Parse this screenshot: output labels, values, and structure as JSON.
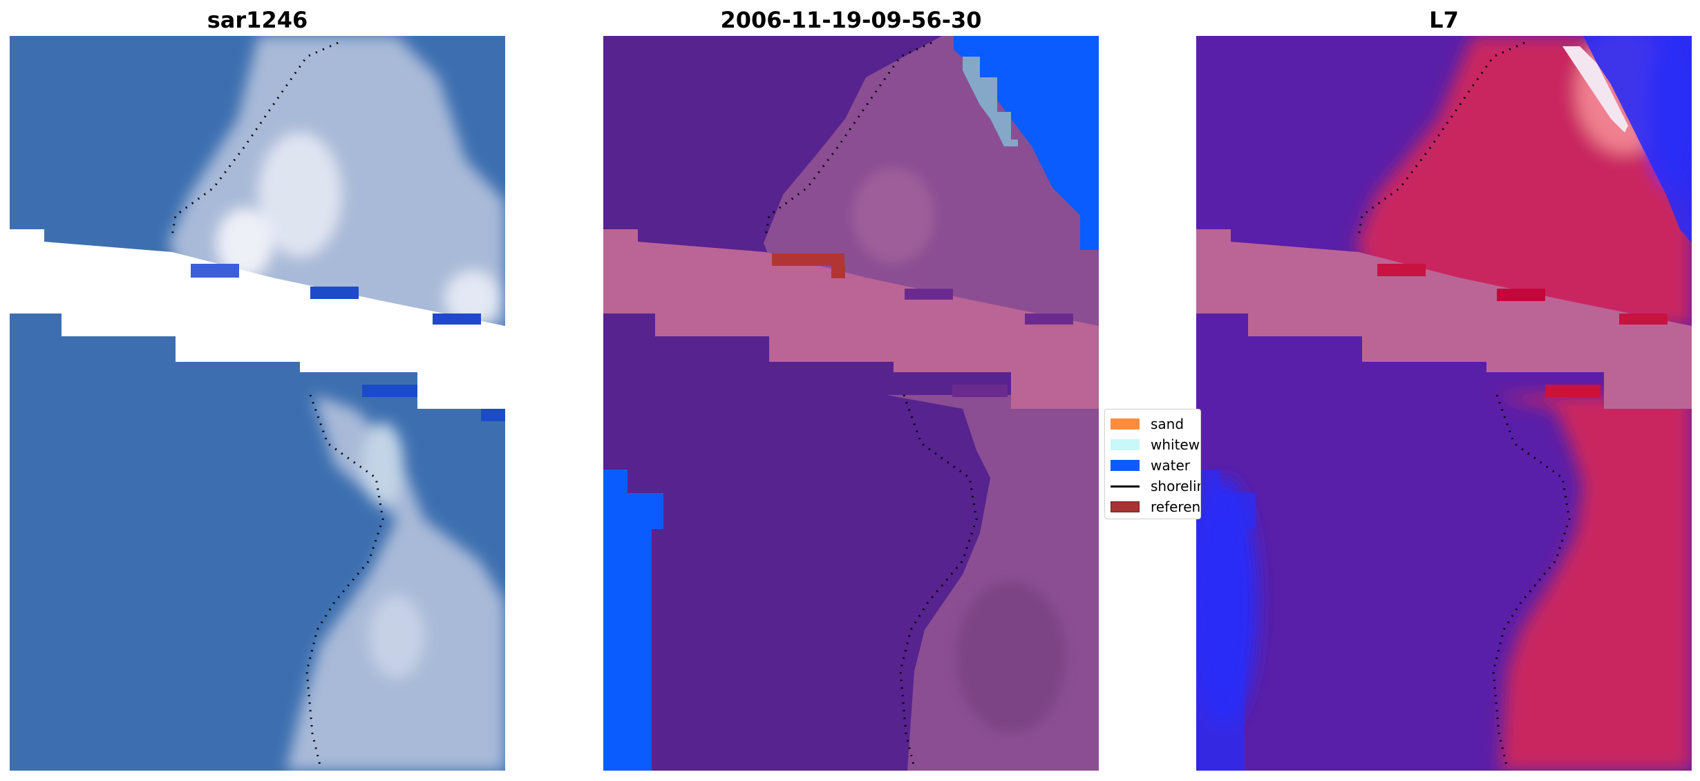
{
  "panels": [
    {
      "title": "sar1246"
    },
    {
      "title": "2006-11-19-09-56-30"
    },
    {
      "title": "L7"
    }
  ],
  "legend": {
    "items": [
      {
        "label": "sand",
        "color": "#ff8c3a",
        "kind": "patch"
      },
      {
        "label": "whitewater",
        "color": "#c8f8f8",
        "kind": "patch"
      },
      {
        "label": "water",
        "color": "#0a5cff",
        "kind": "patch"
      },
      {
        "label": "shoreline",
        "color": "#000000",
        "kind": "line"
      },
      {
        "label": "reference",
        "color": "#a83232",
        "kind": "patch"
      }
    ]
  },
  "colors": {
    "ocean_rgb": "#3d6fb0",
    "surf_rgb": "#aebfdc",
    "nodata": "#ffffff",
    "water_class": "#0a5cff",
    "land_overlay": "#8b4e93",
    "cloud_overlay": "#bb6596",
    "ocean_overlay": "#57238f",
    "nir_ocean": "#5a1fa8",
    "nir_land": "#c92660",
    "nir_water": "#2a2cf5"
  }
}
